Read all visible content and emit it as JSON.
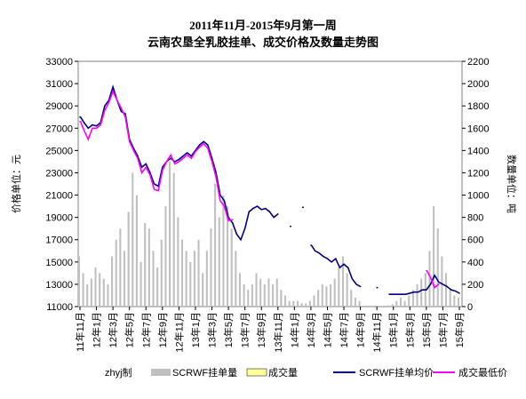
{
  "chart_data": {
    "type": "combo",
    "title": "2011年11月-2015年9月第一周",
    "subtitle": "云南农垦全乳胶挂单、成交价格及数量走势图",
    "y_label": "价格单位：元",
    "y2_label": "数量单位：吨",
    "credit": "zhyj制",
    "categories": [
      "11年11月",
      null,
      null,
      null,
      "12年1月",
      null,
      null,
      null,
      "12年3月",
      null,
      null,
      null,
      "12年5月",
      null,
      null,
      null,
      "12年7月",
      null,
      null,
      null,
      "12年9月",
      null,
      null,
      null,
      "12年11月",
      null,
      null,
      null,
      "13年1月",
      null,
      null,
      null,
      "13年3月",
      null,
      null,
      null,
      "13年5月",
      null,
      null,
      null,
      "13年7月",
      null,
      null,
      null,
      "13年9月",
      null,
      null,
      null,
      "13年11月",
      null,
      null,
      null,
      "14年1月",
      null,
      null,
      null,
      "14年3月",
      null,
      null,
      null,
      "14年5月",
      null,
      null,
      null,
      "14年7月",
      null,
      null,
      null,
      "14年9月",
      null,
      null,
      null,
      "14年11月",
      null,
      null,
      null,
      "15年1月",
      null,
      null,
      null,
      "15年3月",
      null,
      null,
      null,
      "15年5月",
      null,
      null,
      null,
      "15年7月",
      null,
      null,
      null,
      "15年9月"
    ],
    "ylim": [
      11000,
      33000
    ],
    "yticks": [
      11000,
      13000,
      15000,
      17000,
      19000,
      21000,
      23000,
      25000,
      27000,
      29000,
      31000,
      33000
    ],
    "y2lim": [
      0,
      2200
    ],
    "y2ticks": [
      0,
      200,
      400,
      600,
      800,
      1000,
      1200,
      1400,
      1600,
      1800,
      2000,
      2200
    ],
    "series": [
      {
        "name": "SCRWF挂单量",
        "type": "bar",
        "axis": "y2",
        "color": "#c0c0c0",
        "values": [
          450,
          300,
          200,
          250,
          350,
          300,
          250,
          200,
          450,
          600,
          700,
          500,
          850,
          1200,
          1000,
          400,
          750,
          700,
          500,
          350,
          600,
          900,
          1300,
          1200,
          800,
          600,
          500,
          400,
          500,
          600,
          300,
          500,
          700,
          1100,
          800,
          1000,
          900,
          700,
          500,
          300,
          200,
          150,
          200,
          300,
          250,
          200,
          250,
          200,
          250,
          150,
          100,
          50,
          50,
          50,
          30,
          30,
          50,
          100,
          150,
          200,
          180,
          200,
          250,
          350,
          450,
          300,
          150,
          80,
          50,
          0,
          0,
          0,
          10,
          0,
          0,
          10,
          20,
          50,
          80,
          50,
          100,
          150,
          200,
          250,
          300,
          500,
          900,
          700,
          450,
          300,
          150,
          100,
          80
        ]
      },
      {
        "name": "成交量",
        "type": "bar",
        "axis": "y2",
        "color": "#ffff99",
        "values": [
          0,
          0,
          0,
          0,
          0,
          0,
          0,
          0,
          0,
          0,
          0,
          0,
          0,
          0,
          0,
          0,
          0,
          0,
          0,
          0,
          0,
          0,
          0,
          0,
          0,
          0,
          0,
          0,
          0,
          0,
          0,
          0,
          0,
          0,
          0,
          0,
          0,
          0,
          0,
          0,
          0,
          0,
          0,
          0,
          0,
          0,
          0,
          0,
          0,
          0,
          0,
          0,
          0,
          0,
          0,
          0,
          0,
          0,
          0,
          0,
          0,
          0,
          0,
          0,
          0,
          0,
          0,
          0,
          0,
          0,
          0,
          0,
          0,
          0,
          0,
          0,
          0,
          0,
          0,
          0,
          0,
          0,
          0,
          0,
          0,
          0,
          0,
          0,
          0,
          0,
          0,
          0,
          0
        ]
      },
      {
        "name": "SCRWF挂单均价",
        "type": "line",
        "color": "#000080",
        "values": [
          28000,
          27500,
          27000,
          27300,
          27200,
          27500,
          29000,
          29500,
          30700,
          29500,
          28500,
          28300,
          26000,
          25200,
          24500,
          23500,
          23800,
          23000,
          22000,
          21800,
          23500,
          24000,
          24300,
          24000,
          24200,
          24500,
          24800,
          24500,
          25000,
          25500,
          25800,
          25500,
          24300,
          23000,
          21000,
          20500,
          19000,
          18500,
          17500,
          17000,
          18000,
          19500,
          19800,
          20000,
          19700,
          19800,
          19500,
          19000,
          19300,
          null,
          null,
          18200,
          null,
          null,
          19900,
          null,
          16500,
          16000,
          15800,
          15500,
          15300,
          15000,
          15300,
          14500,
          14800,
          14500,
          13500,
          13000,
          12800,
          null,
          null,
          null,
          12700,
          null,
          null,
          12100,
          12100,
          12100,
          12100,
          12100,
          12200,
          12300,
          12300,
          12500,
          12500,
          13000,
          13800,
          13200,
          13000,
          12800,
          12500,
          12400,
          12200
        ]
      },
      {
        "name": "成交最低价",
        "type": "line",
        "color": "#ff00ff",
        "values": [
          27600,
          26800,
          26000,
          27000,
          27000,
          27300,
          28600,
          29300,
          30300,
          29500,
          28800,
          28000,
          25800,
          25000,
          24300,
          23000,
          23500,
          22800,
          21500,
          21400,
          23200,
          24000,
          24600,
          23800,
          24000,
          24300,
          24600,
          24300,
          24900,
          25300,
          25600,
          25200,
          24000,
          22600,
          20500,
          20000,
          18700,
          18800,
          null,
          null,
          null,
          null,
          null,
          null,
          null,
          null,
          null,
          null,
          null,
          null,
          null,
          null,
          null,
          null,
          null,
          null,
          null,
          null,
          null,
          null,
          null,
          null,
          null,
          null,
          null,
          null,
          null,
          null,
          null,
          null,
          null,
          null,
          null,
          null,
          null,
          null,
          null,
          null,
          null,
          null,
          null,
          null,
          null,
          null,
          14200,
          13600,
          12700,
          13000,
          null,
          null,
          null,
          null,
          null
        ]
      }
    ]
  }
}
